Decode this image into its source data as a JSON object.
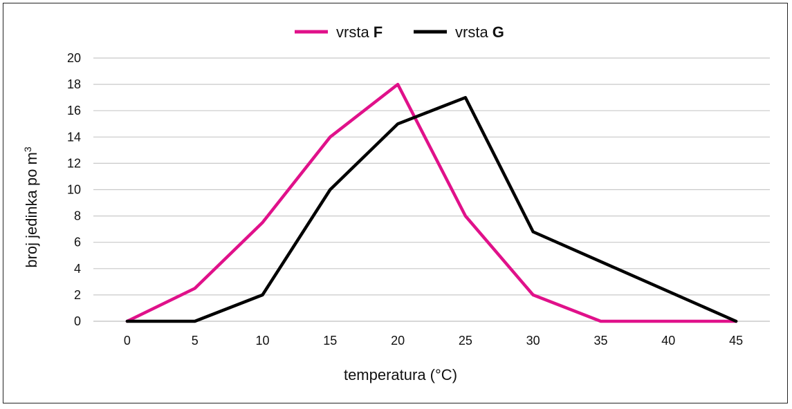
{
  "chart_data": {
    "type": "line",
    "xlabel": "temperatura (°C)",
    "ylabel": "broj jedinka po m",
    "ylabel_sup": "3",
    "x": [
      0,
      5,
      10,
      15,
      20,
      25,
      30,
      35,
      40,
      45
    ],
    "ylim": [
      0,
      20
    ],
    "yticks": [
      0,
      2,
      4,
      6,
      8,
      10,
      12,
      14,
      16,
      18,
      20
    ],
    "grid": true,
    "legend_position": "top",
    "series": [
      {
        "name_prefix": "vrsta ",
        "name_bold": "F",
        "color": "#e0118a",
        "points": [
          [
            0,
            0
          ],
          [
            5,
            2.5
          ],
          [
            10,
            7.5
          ],
          [
            15,
            14
          ],
          [
            20,
            18
          ],
          [
            25,
            8
          ],
          [
            30,
            2
          ],
          [
            35,
            0
          ],
          [
            45,
            0
          ]
        ]
      },
      {
        "name_prefix": "vrsta ",
        "name_bold": "G",
        "color": "#000000",
        "points": [
          [
            0,
            0
          ],
          [
            5,
            0
          ],
          [
            10,
            2
          ],
          [
            15,
            10
          ],
          [
            20,
            15
          ],
          [
            25,
            17
          ],
          [
            30,
            6.8
          ],
          [
            45,
            0
          ]
        ]
      }
    ]
  }
}
